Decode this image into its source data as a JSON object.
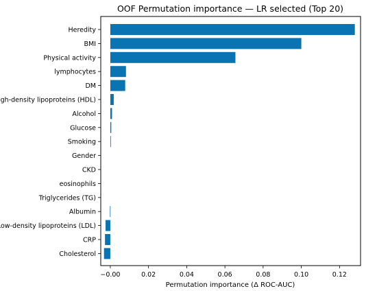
{
  "chart_data": {
    "type": "bar",
    "orientation": "horizontal",
    "title": "OOF Permutation importance — LR selected (Top 20)",
    "xlabel": "Permutation importance (Δ ROC-AUC)",
    "ylabel": "",
    "xlim": [
      -0.005,
      0.131
    ],
    "xticks": [
      "−0.00",
      "0.02",
      "0.04",
      "0.06",
      "0.08",
      "0.10",
      "0.12"
    ],
    "xtick_values": [
      0.0,
      0.02,
      0.04,
      0.06,
      0.08,
      0.1,
      0.12
    ],
    "grid": false,
    "bar_color": "#0a74b2",
    "categories": [
      "Heredity",
      "BMI",
      "Physical activity",
      "lymphocytes",
      "DM",
      "High-density lipoproteins (HDL)",
      "Alcohol",
      "Glucose",
      "Smoking",
      "Gender",
      "CKD",
      "eosinophils",
      "Triglycerides (TG)",
      "Albumin",
      "Low-density lipoproteins (LDL)",
      "CRP",
      "Cholesterol"
    ],
    "values": [
      0.128,
      0.1,
      0.0655,
      0.0082,
      0.0078,
      0.0018,
      0.0009,
      0.0005,
      0.0003,
      0.0,
      0.0,
      0.0,
      0.0,
      -0.0002,
      -0.0025,
      -0.0028,
      -0.0033
    ]
  }
}
